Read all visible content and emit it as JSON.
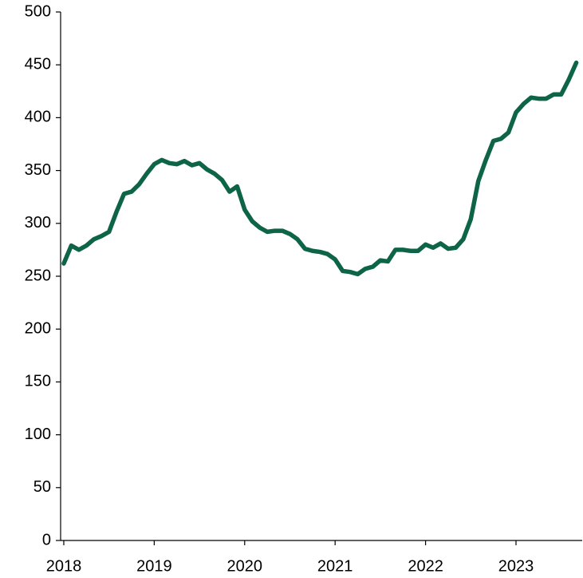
{
  "chart_data": {
    "type": "line",
    "x": [
      2018,
      2018.0833,
      2018.1667,
      2018.25,
      2018.3333,
      2018.4167,
      2018.5,
      2018.5833,
      2018.6667,
      2018.75,
      2018.8333,
      2018.9167,
      2019,
      2019.0833,
      2019.1667,
      2019.25,
      2019.3333,
      2019.4167,
      2019.5,
      2019.5833,
      2019.6667,
      2019.75,
      2019.8333,
      2019.9167,
      2020,
      2020.0833,
      2020.1667,
      2020.25,
      2020.3333,
      2020.4167,
      2020.5,
      2020.5833,
      2020.6667,
      2020.75,
      2020.8333,
      2020.9167,
      2021,
      2021.0833,
      2021.1667,
      2021.25,
      2021.3333,
      2021.4167,
      2021.5,
      2021.5833,
      2021.6667,
      2021.75,
      2021.8333,
      2021.9167,
      2022,
      2022.0833,
      2022.1667,
      2022.25,
      2022.3333,
      2022.4167,
      2022.5,
      2022.5833,
      2022.6667,
      2022.75,
      2022.8333,
      2022.9167,
      2023,
      2023.0833,
      2023.1667,
      2023.25,
      2023.3333,
      2023.4167,
      2023.5,
      2023.5833,
      2023.6667
    ],
    "series": [
      {
        "color": "#0d6447",
        "values": [
          262,
          279,
          275,
          279,
          285,
          288,
          292,
          311,
          328,
          330,
          337,
          347,
          356,
          360,
          357,
          356,
          359,
          355,
          357,
          351,
          347,
          341,
          330,
          335,
          313,
          302,
          296,
          292,
          293,
          293,
          290,
          285,
          276,
          274,
          273,
          271,
          266,
          255,
          254,
          252,
          257,
          259,
          265,
          264,
          275,
          275,
          274,
          274,
          280,
          277,
          281,
          276,
          277,
          285,
          304,
          340,
          360,
          378,
          380,
          386,
          405,
          413,
          419,
          418,
          418,
          422,
          422,
          436,
          452
        ]
      }
    ],
    "xlim": [
      2017.965,
      2023.732
    ],
    "xticks": [
      2018,
      2019,
      2020,
      2021,
      2022,
      2023
    ],
    "ylim": [
      0,
      500
    ],
    "yticks": [
      0,
      50,
      100,
      150,
      200,
      250,
      300,
      350,
      400,
      450,
      500
    ]
  }
}
